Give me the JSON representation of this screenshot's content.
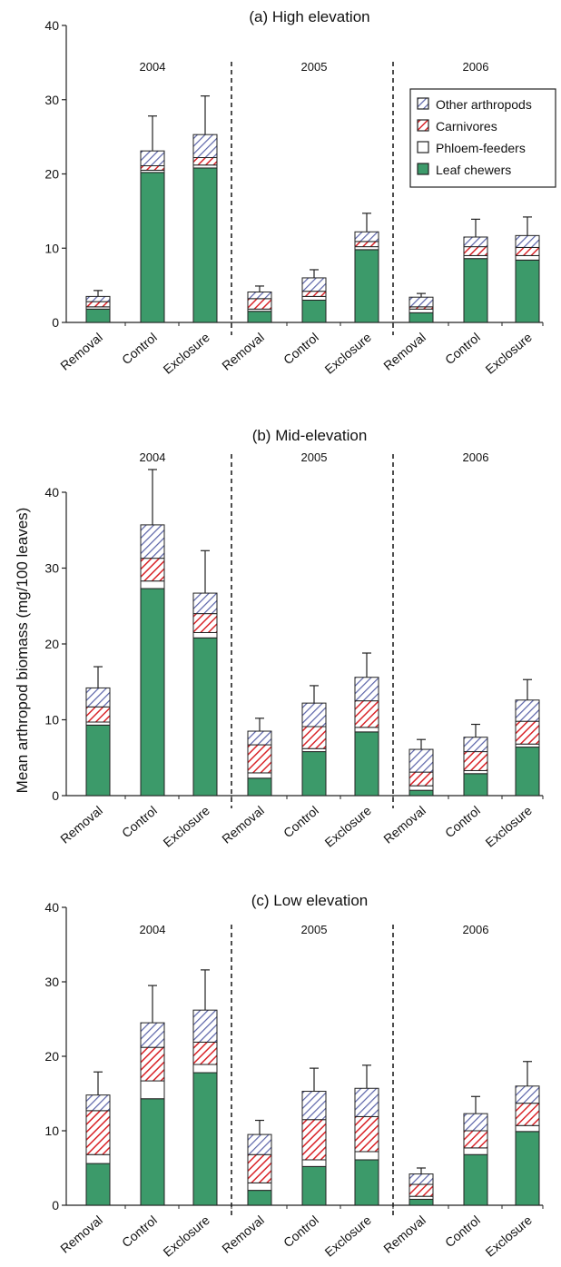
{
  "figure": {
    "ylabel": "Mean arthropod biomass (mg/100 leaves)"
  },
  "colors": {
    "leaf_chewers": "#3c9a6a",
    "phloem_feeders": "#ffffff",
    "carnivores": "#d9252a",
    "other_arthropods": "#5a63a8",
    "stroke": "#222222"
  },
  "legend": [
    {
      "key": "other_arthropods",
      "label": "Other arthropods"
    },
    {
      "key": "carnivores",
      "label": "Carnivores"
    },
    {
      "key": "phloem_feeders",
      "label": "Phloem-feeders"
    },
    {
      "key": "leaf_chewers",
      "label": "Leaf chewers"
    }
  ],
  "chart_data": [
    {
      "type": "bar",
      "stacked": true,
      "title": "(a) High elevation",
      "groups": [
        "2004",
        "2005",
        "2006"
      ],
      "categories": [
        "Removal",
        "Control",
        "Exclosure",
        "Removal",
        "Control",
        "Exclosure",
        "Removal",
        "Control",
        "Exclosure"
      ],
      "ylim": [
        0,
        40
      ],
      "yticks": [
        0,
        10,
        20,
        30,
        40
      ],
      "legend_position": "top-right",
      "series": [
        {
          "name": "Leaf chewers",
          "key": "leaf_chewers",
          "values": [
            1.8,
            20.2,
            20.8,
            1.5,
            3.0,
            9.8,
            1.3,
            8.6,
            8.4
          ]
        },
        {
          "name": "Phloem-feeders",
          "key": "phloem_feeders",
          "values": [
            0.3,
            0.3,
            0.4,
            0.3,
            0.5,
            0.4,
            0.5,
            0.4,
            0.6
          ]
        },
        {
          "name": "Carnivores",
          "key": "carnivores",
          "values": [
            0.7,
            0.6,
            1.0,
            1.4,
            0.7,
            0.7,
            0.3,
            1.2,
            1.1
          ]
        },
        {
          "name": "Other arthropods",
          "key": "other_arthropods",
          "values": [
            0.7,
            2.0,
            3.1,
            0.9,
            1.8,
            1.3,
            1.3,
            1.3,
            1.6
          ]
        }
      ],
      "error_tops": [
        4.3,
        27.8,
        30.5,
        4.9,
        7.1,
        14.7,
        3.9,
        13.9,
        14.2
      ]
    },
    {
      "type": "bar",
      "stacked": true,
      "title": "(b) Mid-elevation",
      "groups": [
        "2004",
        "2005",
        "2006"
      ],
      "categories": [
        "Removal",
        "Control",
        "Exclosure",
        "Removal",
        "Control",
        "Exclosure",
        "Removal",
        "Control",
        "Exclosure"
      ],
      "ylim": [
        0,
        40
      ],
      "yticks": [
        0,
        10,
        20,
        30,
        40
      ],
      "series": [
        {
          "name": "Leaf chewers",
          "key": "leaf_chewers",
          "values": [
            9.3,
            27.3,
            20.8,
            2.3,
            5.8,
            8.4,
            0.7,
            2.9,
            6.4
          ]
        },
        {
          "name": "Phloem-feeders",
          "key": "phloem_feeders",
          "values": [
            0.4,
            1.0,
            0.7,
            0.7,
            0.4,
            0.6,
            0.6,
            0.4,
            0.4
          ]
        },
        {
          "name": "Carnivores",
          "key": "carnivores",
          "values": [
            2.0,
            3.0,
            2.5,
            3.7,
            2.9,
            3.5,
            1.8,
            2.5,
            3.0
          ]
        },
        {
          "name": "Other arthropods",
          "key": "other_arthropods",
          "values": [
            2.5,
            4.4,
            2.7,
            1.8,
            3.1,
            3.1,
            3.0,
            1.9,
            2.8
          ]
        }
      ],
      "error_tops": [
        17.0,
        43.0,
        32.3,
        10.2,
        14.5,
        18.8,
        7.4,
        9.4,
        15.3
      ]
    },
    {
      "type": "bar",
      "stacked": true,
      "title": "(c) Low elevation",
      "groups": [
        "2004",
        "2005",
        "2006"
      ],
      "categories": [
        "Removal",
        "Control",
        "Exclosure",
        "Removal",
        "Control",
        "Exclosure",
        "Removal",
        "Control",
        "Exclosure"
      ],
      "ylim": [
        0,
        40
      ],
      "yticks": [
        0,
        10,
        20,
        30,
        40
      ],
      "series": [
        {
          "name": "Leaf chewers",
          "key": "leaf_chewers",
          "values": [
            5.6,
            14.3,
            17.8,
            2.0,
            5.2,
            6.1,
            0.8,
            6.8,
            9.9
          ]
        },
        {
          "name": "Phloem-feeders",
          "key": "phloem_feeders",
          "values": [
            1.2,
            2.4,
            1.1,
            1.0,
            0.9,
            1.1,
            0.4,
            0.9,
            0.8
          ]
        },
        {
          "name": "Carnivores",
          "key": "carnivores",
          "values": [
            5.9,
            4.5,
            3.0,
            3.8,
            5.4,
            4.7,
            1.6,
            2.3,
            3.0
          ]
        },
        {
          "name": "Other arthropods",
          "key": "other_arthropods",
          "values": [
            2.1,
            3.3,
            4.3,
            2.7,
            3.8,
            3.8,
            1.4,
            2.3,
            2.3
          ]
        }
      ],
      "error_tops": [
        17.9,
        29.5,
        31.6,
        11.4,
        18.4,
        18.8,
        5.0,
        14.6,
        19.3
      ]
    }
  ]
}
